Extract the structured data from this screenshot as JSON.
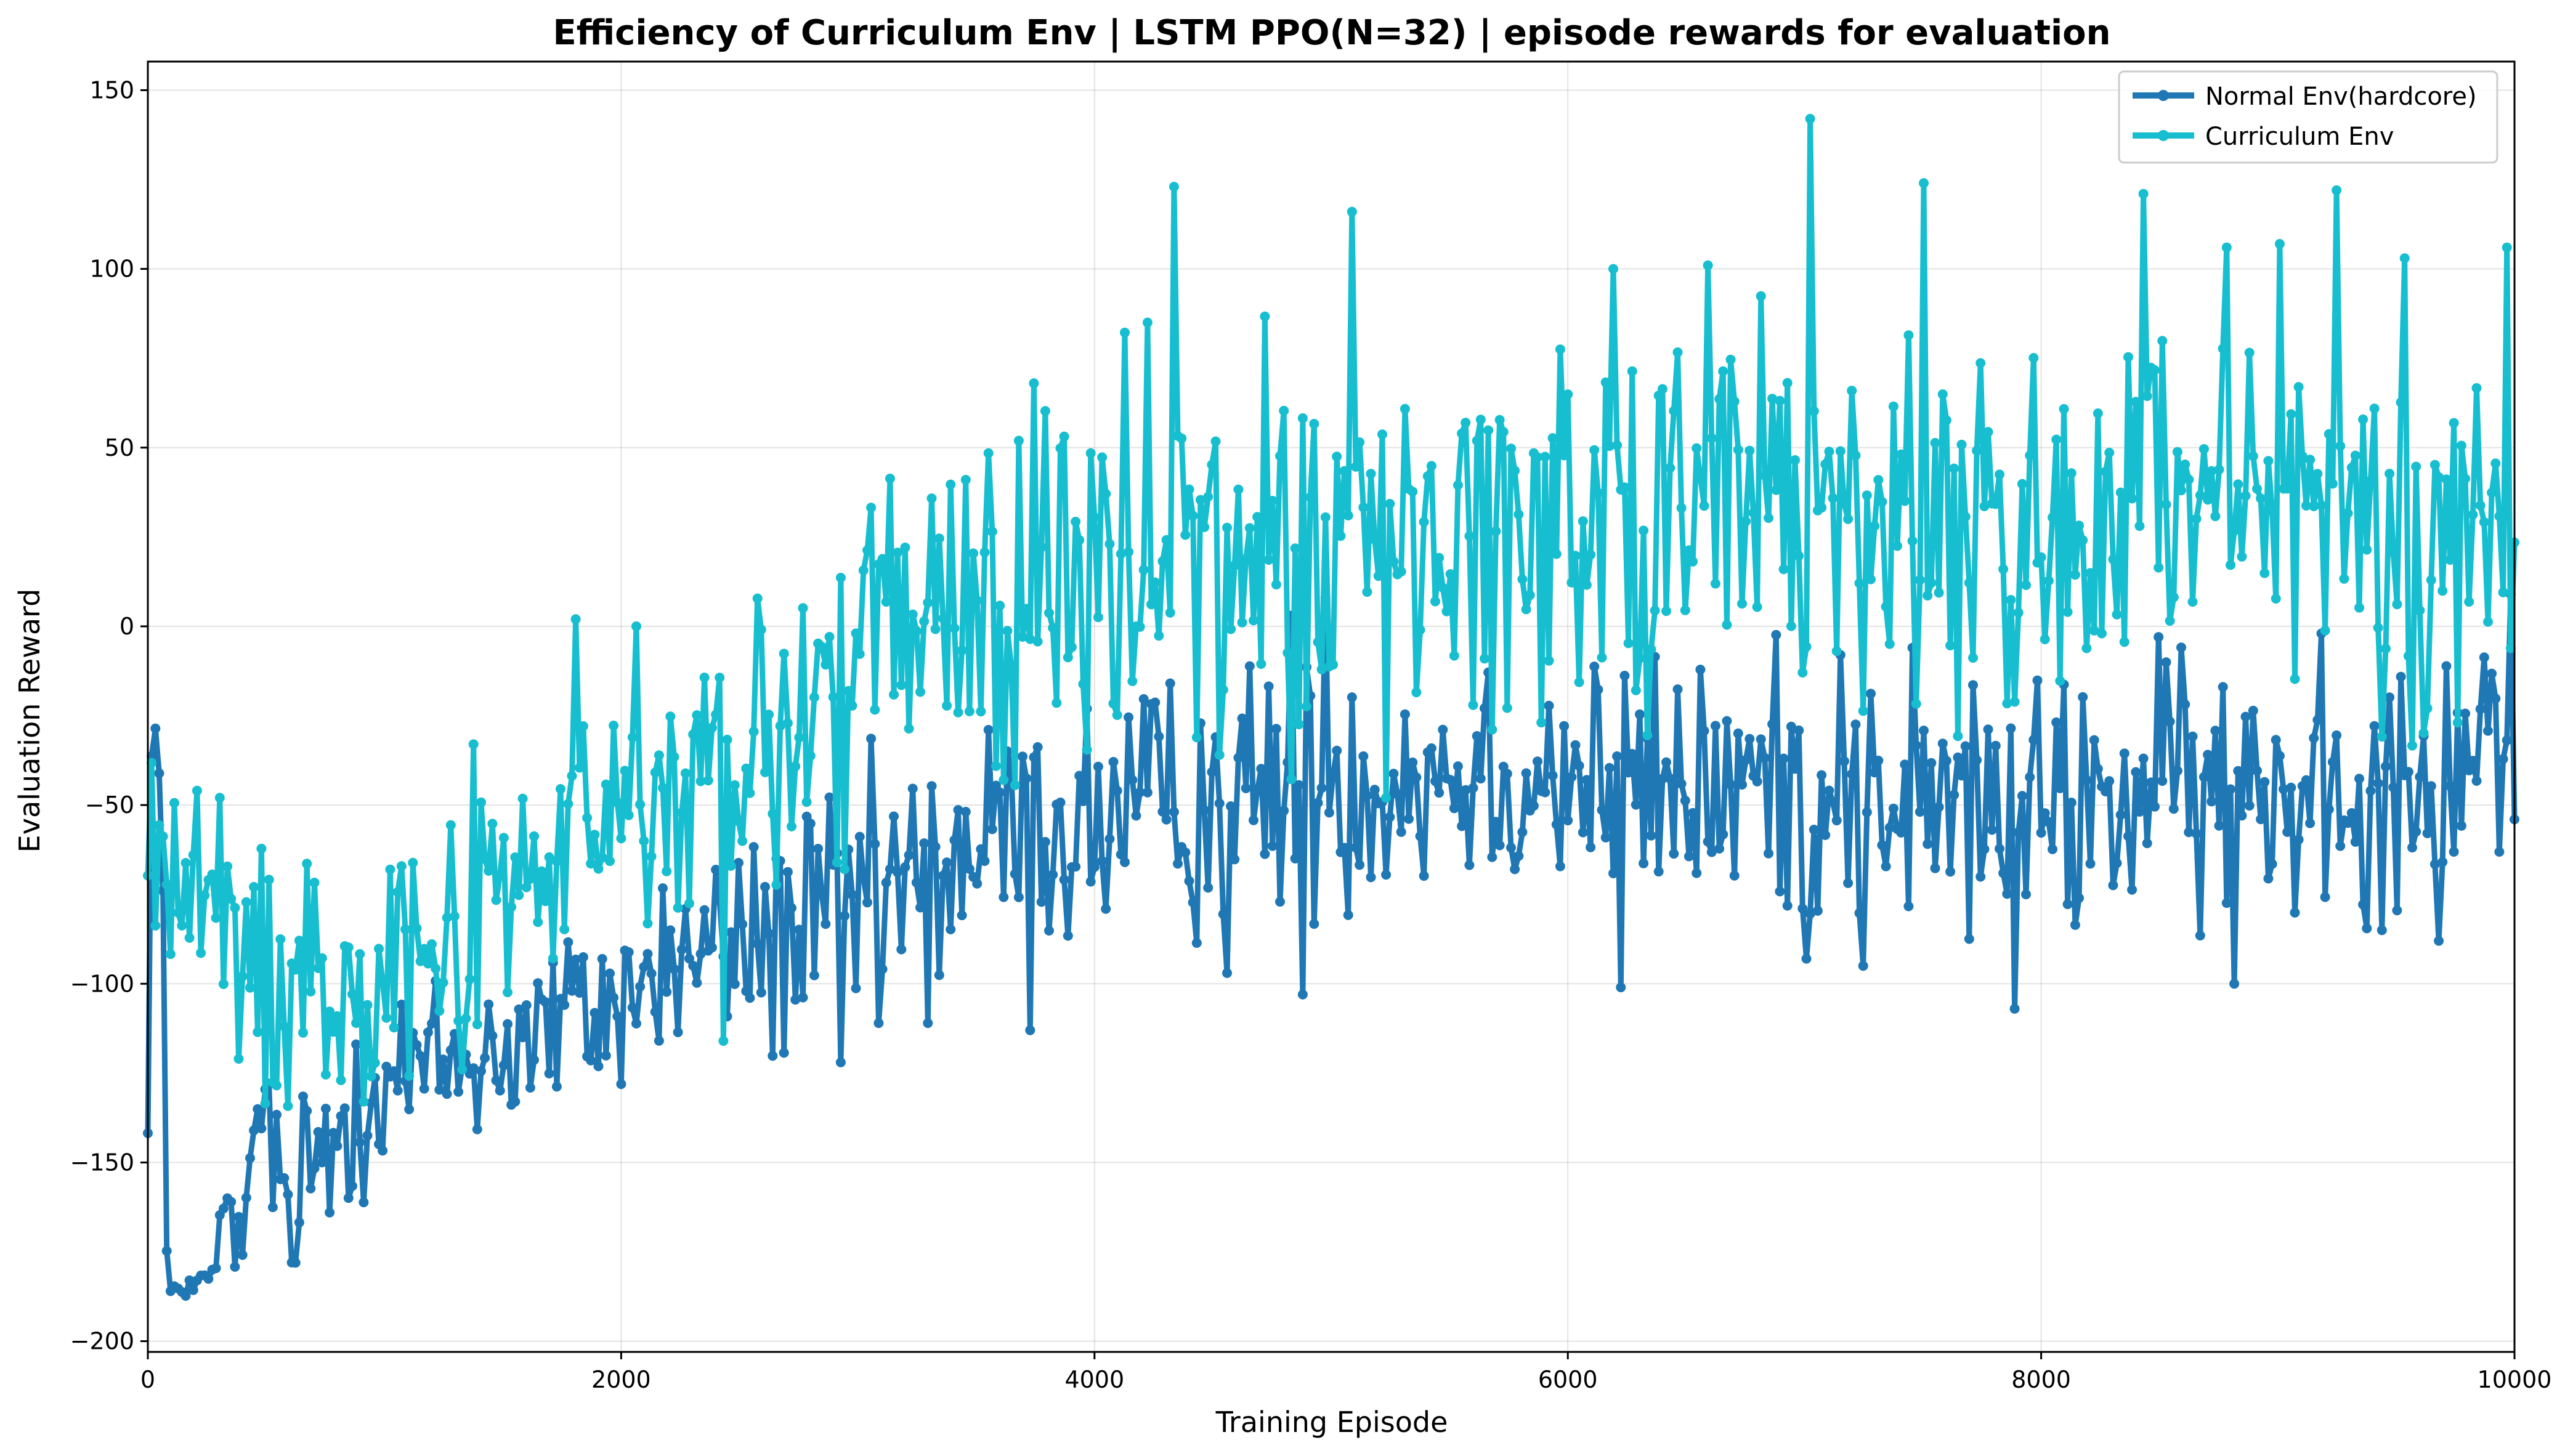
{
  "chart_data": {
    "type": "line",
    "title": "Efficiency of Curriculum Env | LSTM PPO(N=32) | episode rewards for evaluation",
    "xlabel": "Training Episode",
    "ylabel": "Evaluation Reward",
    "xlim": [
      0,
      10000
    ],
    "ylim": [
      -203,
      158
    ],
    "xticks": [
      0,
      2000,
      4000,
      6000,
      8000,
      10000
    ],
    "yticks": [
      -200,
      -150,
      -100,
      -50,
      0,
      50,
      100,
      150
    ],
    "grid": true,
    "legend_position": "top-right",
    "series": [
      {
        "name": "Normal Env(hardcore)",
        "color": "#1f77b4",
        "keypoints": [
          [
            0,
            -105
          ],
          [
            20,
            -27
          ],
          [
            50,
            -45
          ],
          [
            70,
            -100
          ],
          [
            80,
            -176
          ],
          [
            110,
            -185
          ],
          [
            200,
            -184
          ],
          [
            280,
            -182
          ],
          [
            300,
            -172
          ],
          [
            350,
            -166
          ],
          [
            400,
            -176
          ],
          [
            450,
            -145
          ],
          [
            500,
            -130
          ],
          [
            550,
            -155
          ],
          [
            600,
            -160
          ],
          [
            650,
            -150
          ],
          [
            700,
            -160
          ],
          [
            750,
            -140
          ],
          [
            800,
            -140
          ],
          [
            900,
            -130
          ],
          [
            1000,
            -125
          ],
          [
            1200,
            -125
          ],
          [
            1400,
            -120
          ],
          [
            1600,
            -115
          ],
          [
            1800,
            -110
          ],
          [
            2000,
            -105
          ],
          [
            2200,
            -95
          ],
          [
            2400,
            -90
          ],
          [
            2600,
            -88
          ],
          [
            2800,
            -85
          ],
          [
            3000,
            -80
          ],
          [
            3200,
            -72
          ],
          [
            3400,
            -65
          ],
          [
            3600,
            -60
          ],
          [
            3800,
            -58
          ],
          [
            4000,
            -55
          ],
          [
            4200,
            -52
          ],
          [
            4400,
            -50
          ],
          [
            4600,
            -48
          ],
          [
            4800,
            -46
          ],
          [
            5000,
            -44
          ],
          [
            5200,
            -42
          ],
          [
            5400,
            -40
          ],
          [
            5600,
            -40
          ],
          [
            5800,
            -40
          ],
          [
            6000,
            -42
          ],
          [
            6200,
            -44
          ],
          [
            6400,
            -46
          ],
          [
            6600,
            -45
          ],
          [
            6800,
            -44
          ],
          [
            7000,
            -45
          ],
          [
            7200,
            -47
          ],
          [
            7400,
            -48
          ],
          [
            7600,
            -50
          ],
          [
            7800,
            -52
          ],
          [
            8000,
            -52
          ],
          [
            8200,
            -50
          ],
          [
            8400,
            -48
          ],
          [
            8600,
            -48
          ],
          [
            8800,
            -47
          ],
          [
            9000,
            -46
          ],
          [
            9200,
            -45
          ],
          [
            9400,
            -44
          ],
          [
            9600,
            -40
          ],
          [
            9800,
            -32
          ],
          [
            10000,
            -28
          ]
        ],
        "spikes": [
          [
            95,
            -186
          ],
          [
            210,
            -183
          ],
          [
            330,
            -160
          ],
          [
            610,
            -178
          ],
          [
            760,
            -164
          ],
          [
            2920,
            -122
          ],
          [
            3080,
            -111
          ],
          [
            3300,
            -111
          ],
          [
            3730,
            -113
          ],
          [
            4560,
            -97
          ],
          [
            4880,
            -103
          ],
          [
            6220,
            -101
          ],
          [
            7010,
            -93
          ],
          [
            7250,
            -95
          ],
          [
            7890,
            -107
          ],
          [
            8820,
            -100
          ],
          [
            9680,
            -88
          ],
          [
            4830,
            3
          ],
          [
            4980,
            8
          ],
          [
            9990,
            9
          ],
          [
            9180,
            -2
          ],
          [
            8500,
            -3
          ],
          [
            7450,
            -6
          ],
          [
            7150,
            -8
          ]
        ]
      },
      {
        "name": "Curriculum Env",
        "color": "#17becf",
        "keypoints": [
          [
            0,
            -65
          ],
          [
            50,
            -60
          ],
          [
            100,
            -70
          ],
          [
            200,
            -75
          ],
          [
            300,
            -82
          ],
          [
            400,
            -95
          ],
          [
            500,
            -100
          ],
          [
            600,
            -97
          ],
          [
            800,
            -95
          ],
          [
            1000,
            -88
          ],
          [
            1200,
            -85
          ],
          [
            1400,
            -78
          ],
          [
            1600,
            -70
          ],
          [
            1800,
            -62
          ],
          [
            2000,
            -55
          ],
          [
            2200,
            -50
          ],
          [
            2400,
            -45
          ],
          [
            2600,
            -35
          ],
          [
            2800,
            -22
          ],
          [
            3000,
            -14
          ],
          [
            3200,
            -5
          ],
          [
            3400,
            0
          ],
          [
            3600,
            5
          ],
          [
            3800,
            7
          ],
          [
            4000,
            9
          ],
          [
            4200,
            12
          ],
          [
            4400,
            15
          ],
          [
            4600,
            18
          ],
          [
            4800,
            20
          ],
          [
            5000,
            20
          ],
          [
            5200,
            20
          ],
          [
            5400,
            22
          ],
          [
            5600,
            25
          ],
          [
            5800,
            28
          ],
          [
            6000,
            32
          ],
          [
            6200,
            34
          ],
          [
            6400,
            36
          ],
          [
            6600,
            36
          ],
          [
            6800,
            34
          ],
          [
            7000,
            32
          ],
          [
            7200,
            30
          ],
          [
            7400,
            28
          ],
          [
            7600,
            27
          ],
          [
            7800,
            26
          ],
          [
            8000,
            26
          ],
          [
            8200,
            26
          ],
          [
            8400,
            26
          ],
          [
            8600,
            27
          ],
          [
            8800,
            28
          ],
          [
            9000,
            28
          ],
          [
            9200,
            28
          ],
          [
            9400,
            27
          ],
          [
            9600,
            26
          ],
          [
            9800,
            26
          ],
          [
            10000,
            27
          ]
        ],
        "spikes": [
          [
            4340,
            123
          ],
          [
            5090,
            116
          ],
          [
            7020,
            142
          ],
          [
            7510,
            124
          ],
          [
            8430,
            121
          ],
          [
            9240,
            122
          ],
          [
            9960,
            106
          ],
          [
            8790,
            106
          ],
          [
            9010,
            107
          ],
          [
            9530,
            103
          ],
          [
            6590,
            101
          ],
          [
            6190,
            100
          ],
          [
            4230,
            85
          ],
          [
            2430,
            -116
          ],
          [
            1330,
            -124
          ],
          [
            820,
            -127
          ],
          [
            1810,
            2
          ],
          [
            2060,
            0
          ],
          [
            3450,
            41
          ],
          [
            3750,
            68
          ]
        ]
      }
    ]
  }
}
